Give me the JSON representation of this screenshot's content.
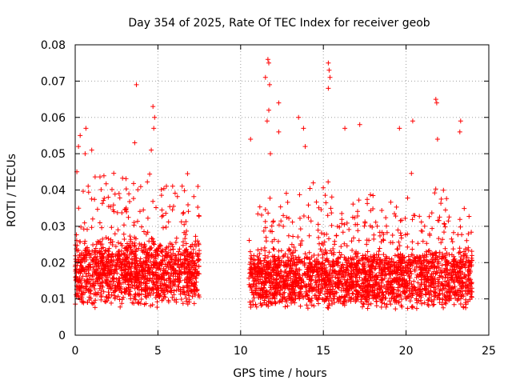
{
  "chart_data": {
    "type": "scatter",
    "title": "Day 354 of 2025, Rate Of TEC Index for receiver geob",
    "xlabel": "GPS time / hours",
    "ylabel": "ROTI / TECUs",
    "xlim": [
      0,
      25
    ],
    "ylim": [
      0,
      0.08
    ],
    "x_ticks": [
      0,
      5,
      10,
      15,
      20,
      25
    ],
    "x_tick_labels": [
      "0",
      "5",
      "10",
      "15",
      "20",
      "25"
    ],
    "y_ticks": [
      0,
      0.01,
      0.02,
      0.03,
      0.04,
      0.05,
      0.06,
      0.07,
      0.08
    ],
    "y_tick_labels": [
      "0",
      "0.01",
      "0.02",
      "0.03",
      "0.04",
      "0.05",
      "0.06",
      "0.07",
      "0.08"
    ],
    "grid": true,
    "marker": "plus",
    "series_color": "#ff0000",
    "series": [
      {
        "name": "ROTI",
        "segments": [
          {
            "x_range": [
              0.0,
              7.5
            ],
            "typical": 0.011,
            "spread": 0.008,
            "n": 1400
          },
          {
            "x_range": [
              10.5,
              24.0
            ],
            "typical": 0.01,
            "spread": 0.006,
            "n": 2400
          }
        ],
        "highlight_points": [
          {
            "x": 3.7,
            "y": 0.069
          },
          {
            "x": 4.7,
            "y": 0.063
          },
          {
            "x": 4.8,
            "y": 0.06
          },
          {
            "x": 4.75,
            "y": 0.057
          },
          {
            "x": 0.2,
            "y": 0.052
          },
          {
            "x": 0.3,
            "y": 0.055
          },
          {
            "x": 0.6,
            "y": 0.05
          },
          {
            "x": 0.65,
            "y": 0.057
          },
          {
            "x": 1.0,
            "y": 0.051
          },
          {
            "x": 4.6,
            "y": 0.051
          },
          {
            "x": 3.6,
            "y": 0.053
          },
          {
            "x": 0.1,
            "y": 0.045
          },
          {
            "x": 11.65,
            "y": 0.076
          },
          {
            "x": 11.7,
            "y": 0.075
          },
          {
            "x": 11.5,
            "y": 0.071
          },
          {
            "x": 11.75,
            "y": 0.069
          },
          {
            "x": 15.3,
            "y": 0.075
          },
          {
            "x": 15.35,
            "y": 0.073
          },
          {
            "x": 15.4,
            "y": 0.071
          },
          {
            "x": 15.3,
            "y": 0.068
          },
          {
            "x": 12.3,
            "y": 0.064
          },
          {
            "x": 11.7,
            "y": 0.062
          },
          {
            "x": 11.6,
            "y": 0.059
          },
          {
            "x": 13.5,
            "y": 0.06
          },
          {
            "x": 21.8,
            "y": 0.065
          },
          {
            "x": 21.85,
            "y": 0.064
          },
          {
            "x": 20.4,
            "y": 0.059
          },
          {
            "x": 23.3,
            "y": 0.059
          },
          {
            "x": 23.25,
            "y": 0.056
          },
          {
            "x": 19.6,
            "y": 0.057
          },
          {
            "x": 17.2,
            "y": 0.058
          },
          {
            "x": 16.3,
            "y": 0.057
          },
          {
            "x": 13.8,
            "y": 0.057
          },
          {
            "x": 12.3,
            "y": 0.056
          },
          {
            "x": 10.6,
            "y": 0.054
          },
          {
            "x": 21.9,
            "y": 0.054
          },
          {
            "x": 11.8,
            "y": 0.05
          },
          {
            "x": 13.9,
            "y": 0.052
          }
        ]
      }
    ]
  }
}
